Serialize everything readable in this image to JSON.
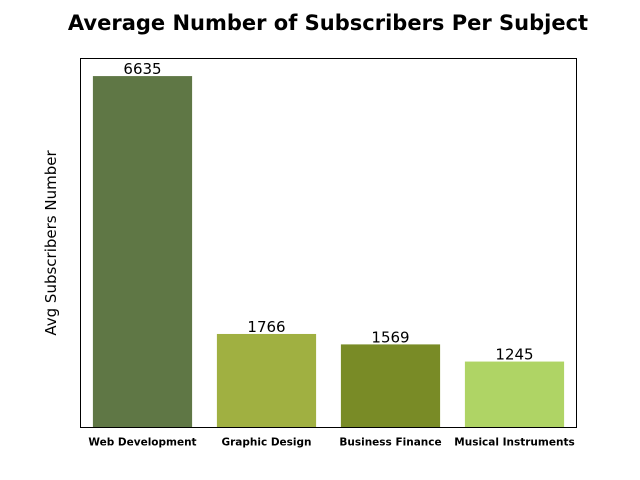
{
  "chart_data": {
    "type": "bar",
    "title": "Average Number of Subscribers Per Subject",
    "xlabel": "",
    "ylabel": "Avg Subscribers Number",
    "categories": [
      "Web Development",
      "Graphic Design",
      "Business Finance",
      "Musical Instruments"
    ],
    "values": [
      6635,
      1766,
      1569,
      1245
    ],
    "value_labels": [
      "6635",
      "1766",
      "1569",
      "1245"
    ],
    "colors": [
      "#5f7745",
      "#a0b041",
      "#798b26",
      "#afd465"
    ],
    "ylim": [
      0,
      6967
    ],
    "y_ticks_visible": false,
    "grid": false,
    "legend": "none"
  }
}
